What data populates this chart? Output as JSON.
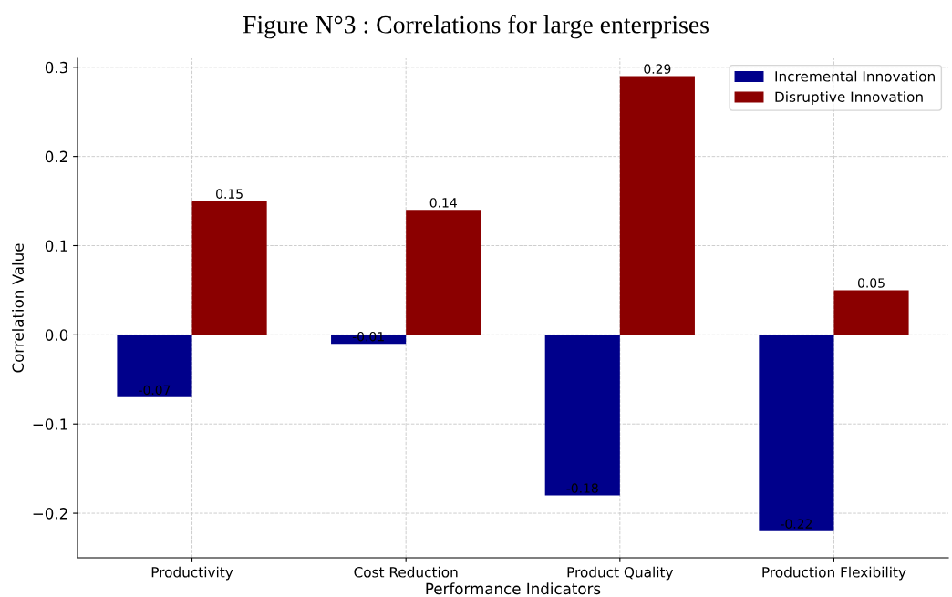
{
  "chart_data": {
    "type": "bar",
    "title": "Figure N°3 : Correlations for large enterprises",
    "xlabel": "Performance Indicators",
    "ylabel": "Correlation Value",
    "categories": [
      "Productivity",
      "Cost Reduction",
      "Product Quality",
      "Production Flexibility"
    ],
    "series": [
      {
        "name": "Incremental Innovation",
        "color": "#00008b",
        "values": [
          -0.07,
          -0.01,
          -0.18,
          -0.22
        ]
      },
      {
        "name": "Disruptive Innovation",
        "color": "#8b0000",
        "values": [
          0.15,
          0.14,
          0.29,
          0.05
        ]
      }
    ],
    "ylim": [
      -0.25,
      0.31
    ],
    "yticks": [
      {
        "value": -0.2,
        "label": "−0.2"
      },
      {
        "value": -0.1,
        "label": "−0.1"
      },
      {
        "value": 0,
        "label": "0.0"
      },
      {
        "value": 0.1,
        "label": "0.1"
      },
      {
        "value": 0.2,
        "label": "0.2"
      },
      {
        "value": 0.3,
        "label": "0.3"
      }
    ],
    "grid": true,
    "legend": "top right",
    "data_labels": true
  }
}
